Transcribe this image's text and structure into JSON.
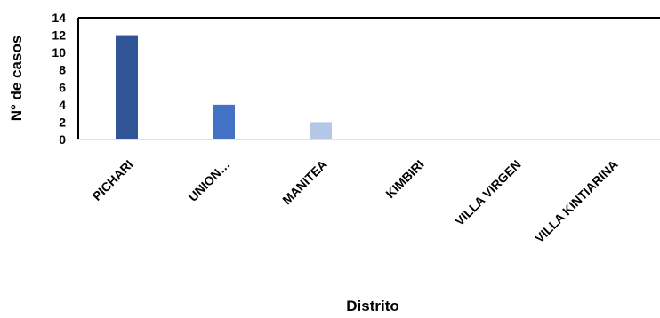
{
  "chart_data": {
    "type": "bar",
    "title": "",
    "xlabel": "Distrito",
    "ylabel": "N° de casos",
    "categories": [
      "PICHARI",
      "UNION…",
      "MANITEA",
      "KIMBIRI",
      "VILLA VIRGEN",
      "VILLA KINTIARINA"
    ],
    "values": [
      12,
      4,
      2,
      0,
      0,
      0
    ],
    "bar_colors": [
      "#2F5597",
      "#4472C4",
      "#B4C7E7",
      "#4472C4",
      "#4472C4",
      "#4472C4"
    ],
    "ylim": [
      0,
      14
    ],
    "yticks": [
      0,
      2,
      4,
      6,
      8,
      10,
      12,
      14
    ],
    "grid": false,
    "legend": "none"
  }
}
